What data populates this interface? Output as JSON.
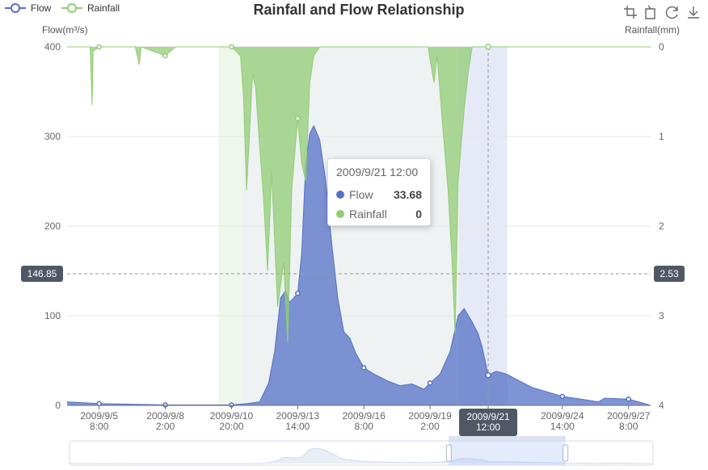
{
  "legend": [
    {
      "name": "Flow",
      "color": "#5470c6"
    },
    {
      "name": "Rainfall",
      "color": "#91cc75"
    }
  ],
  "toolbox": [
    "zoom-icon",
    "zoom-reset-icon",
    "restore-icon",
    "save-image-icon"
  ],
  "pointer": {
    "flow_label": "146.85",
    "rain_label": "2.53",
    "x_label": "2009/9/21\n12:00"
  },
  "tooltip": {
    "time": "2009/9/21 12:00",
    "rows": [
      {
        "name": "Flow",
        "value": "33.68",
        "color": "#5470c6"
      },
      {
        "name": "Rainfall",
        "value": "0",
        "color": "#91cc75"
      }
    ]
  },
  "chart_data": {
    "type": "line",
    "title": "Rainfall and Flow Relationship",
    "x_axis": {
      "min": "2009-09-04 00:00",
      "max": "2009-09-28 06:00",
      "ticks": [
        "2009/9/5\n8:00",
        "2009/9/8\n2:00",
        "2009/9/10\n20:00",
        "2009/9/13\n14:00",
        "2009/9/16\n8:00",
        "2009/9/19\n2:00",
        "2009/9/21\n12:00",
        "2009/9/24\n14:00",
        "2009/9/27\n8:00"
      ]
    },
    "y_axis_left": {
      "name": "Flow(m³/s)",
      "range": [
        0,
        400
      ],
      "ticks": [
        0,
        100,
        200,
        300,
        400
      ]
    },
    "y_axis_right": {
      "name": "Rainfall(mm)",
      "range": [
        0,
        4
      ],
      "inverse": true,
      "ticks": [
        0,
        1,
        2,
        3,
        4
      ]
    },
    "mark_areas": [
      {
        "from": "2009-09-10 07:00",
        "to": "2009-09-11 07:00",
        "color": "#91cc75"
      },
      {
        "from": "2009-09-11 07:00",
        "to": "2009-09-20 07:00",
        "color": "#90a5a5"
      },
      {
        "from": "2009-09-20 07:00",
        "to": "2009-09-22 07:00",
        "color": "#5470c6"
      }
    ],
    "series": [
      {
        "name": "Flow",
        "axis": "left",
        "color": "#5470c6",
        "points": [
          [
            "2009-09-04 00:00",
            4
          ],
          [
            "2009-09-05 08:00",
            2
          ],
          [
            "2009-09-08 02:00",
            0.5
          ],
          [
            "2009-09-10 20:00",
            0.5
          ],
          [
            "2009-09-11 12:00",
            2
          ],
          [
            "2009-09-12 00:00",
            4
          ],
          [
            "2009-09-12 09:00",
            25
          ],
          [
            "2009-09-12 15:00",
            60
          ],
          [
            "2009-09-12 21:00",
            120
          ],
          [
            "2009-09-13 02:00",
            128
          ],
          [
            "2009-09-13 06:00",
            115
          ],
          [
            "2009-09-13 14:00",
            125
          ],
          [
            "2009-09-13 18:00",
            170
          ],
          [
            "2009-09-13 22:00",
            270
          ],
          [
            "2009-09-14 02:00",
            303
          ],
          [
            "2009-09-14 06:00",
            312
          ],
          [
            "2009-09-14 12:00",
            296
          ],
          [
            "2009-09-14 18:00",
            250
          ],
          [
            "2009-09-15 00:00",
            180
          ],
          [
            "2009-09-15 06:00",
            120
          ],
          [
            "2009-09-15 12:00",
            82
          ],
          [
            "2009-09-15 18:00",
            75
          ],
          [
            "2009-09-16 00:00",
            58
          ],
          [
            "2009-09-16 08:00",
            42
          ],
          [
            "2009-09-16 18:00",
            35
          ],
          [
            "2009-09-17 08:00",
            27
          ],
          [
            "2009-09-17 20:00",
            22
          ],
          [
            "2009-09-18 08:00",
            24
          ],
          [
            "2009-09-18 20:00",
            18
          ],
          [
            "2009-09-19 02:00",
            25
          ],
          [
            "2009-09-19 12:00",
            35
          ],
          [
            "2009-09-19 22:00",
            60
          ],
          [
            "2009-09-20 06:00",
            100
          ],
          [
            "2009-09-20 12:00",
            108
          ],
          [
            "2009-09-20 20:00",
            93
          ],
          [
            "2009-09-21 02:00",
            80
          ],
          [
            "2009-09-21 06:00",
            65
          ],
          [
            "2009-09-21 12:00",
            33.68
          ],
          [
            "2009-09-21 20:00",
            38
          ],
          [
            "2009-09-22 06:00",
            35
          ],
          [
            "2009-09-22 18:00",
            28
          ],
          [
            "2009-09-23 08:00",
            20
          ],
          [
            "2009-09-24 14:00",
            10
          ],
          [
            "2009-09-25 14:00",
            6
          ],
          [
            "2009-09-26 02:00",
            4
          ],
          [
            "2009-09-26 08:00",
            8
          ],
          [
            "2009-09-27 08:00",
            7
          ],
          [
            "2009-09-27 18:00",
            4
          ],
          [
            "2009-09-28 06:00",
            0
          ]
        ]
      },
      {
        "name": "Rainfall",
        "axis": "right",
        "color": "#91cc75",
        "points": [
          [
            "2009-09-04 00:00",
            0
          ],
          [
            "2009-09-04 23:00",
            0
          ],
          [
            "2009-09-05 01:00",
            0.65
          ],
          [
            "2009-09-05 02:00",
            0.05
          ],
          [
            "2009-09-05 08:00",
            0
          ],
          [
            "2009-09-06 20:00",
            0
          ],
          [
            "2009-09-07 00:00",
            0.2
          ],
          [
            "2009-09-07 02:00",
            0
          ],
          [
            "2009-09-08 02:00",
            0.1
          ],
          [
            "2009-09-08 12:00",
            0
          ],
          [
            "2009-09-10 20:00",
            0
          ],
          [
            "2009-09-11 05:00",
            0.1
          ],
          [
            "2009-09-11 08:00",
            0.55
          ],
          [
            "2009-09-11 11:00",
            1.6
          ],
          [
            "2009-09-11 14:00",
            0.95
          ],
          [
            "2009-09-11 17:00",
            0.3
          ],
          [
            "2009-09-11 20:00",
            0.45
          ],
          [
            "2009-09-12 00:00",
            1.1
          ],
          [
            "2009-09-12 04:00",
            1.7
          ],
          [
            "2009-09-12 08:00",
            2.5
          ],
          [
            "2009-09-12 12:00",
            1.4
          ],
          [
            "2009-09-12 18:00",
            2.9
          ],
          [
            "2009-09-13 00:00",
            2.4
          ],
          [
            "2009-09-13 04:00",
            3.3
          ],
          [
            "2009-09-13 08:00",
            1.6
          ],
          [
            "2009-09-13 14:00",
            0.8
          ],
          [
            "2009-09-13 18:00",
            1.3
          ],
          [
            "2009-09-13 22:00",
            1.5
          ],
          [
            "2009-09-14 02:00",
            0.4
          ],
          [
            "2009-09-14 06:00",
            0.1
          ],
          [
            "2009-09-14 12:00",
            0
          ],
          [
            "2009-09-19 00:00",
            0
          ],
          [
            "2009-09-19 03:00",
            0.2
          ],
          [
            "2009-09-19 06:00",
            0.4
          ],
          [
            "2009-09-19 09:00",
            0.1
          ],
          [
            "2009-09-19 14:00",
            0.8
          ],
          [
            "2009-09-19 20:00",
            1.6
          ],
          [
            "2009-09-20 00:00",
            2.4
          ],
          [
            "2009-09-20 03:00",
            3.2
          ],
          [
            "2009-09-20 06:00",
            1.5
          ],
          [
            "2009-09-20 09:00",
            1.1
          ],
          [
            "2009-09-20 12:00",
            0.7
          ],
          [
            "2009-09-20 16:00",
            0.3
          ],
          [
            "2009-09-20 20:00",
            0
          ],
          [
            "2009-09-28 06:00",
            0
          ]
        ]
      }
    ],
    "data_zoom": {
      "start_percent": 65,
      "end_percent": 85
    }
  }
}
